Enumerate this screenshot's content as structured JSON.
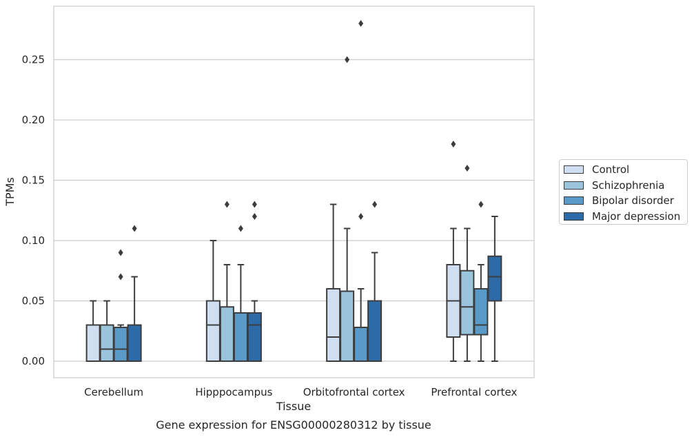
{
  "chart_data": {
    "type": "boxplot",
    "title": "Gene expression for ENSG00000280312 by tissue",
    "xlabel": "Tissue",
    "ylabel": "TPMs",
    "ylim": [
      -0.014,
      0.295
    ],
    "yticks": [
      "0.00",
      "0.05",
      "0.10",
      "0.15",
      "0.20",
      "0.25"
    ],
    "grid": true,
    "legend_position": "outside-right",
    "categories": [
      "Cerebellum",
      "Hipppocampus",
      "Orbitofrontal cortex",
      "Prefrontal cortex"
    ],
    "series": [
      {
        "name": "Control",
        "color": "#cfdef0",
        "boxes": [
          {
            "whislo": 0.0,
            "q1": 0.0,
            "med": 0.0,
            "q3": 0.03,
            "whishi": 0.05,
            "fliers": []
          },
          {
            "whislo": 0.0,
            "q1": 0.0,
            "med": 0.03,
            "q3": 0.05,
            "whishi": 0.1,
            "fliers": []
          },
          {
            "whislo": 0.0,
            "q1": 0.0,
            "med": 0.02,
            "q3": 0.06,
            "whishi": 0.13,
            "fliers": []
          },
          {
            "whislo": 0.0,
            "q1": 0.02,
            "med": 0.05,
            "q3": 0.08,
            "whishi": 0.11,
            "fliers": [
              0.18
            ]
          }
        ]
      },
      {
        "name": "Schizophrenia",
        "color": "#9ac3dc",
        "boxes": [
          {
            "whislo": 0.0,
            "q1": 0.0,
            "med": 0.01,
            "q3": 0.03,
            "whishi": 0.05,
            "fliers": []
          },
          {
            "whislo": 0.0,
            "q1": 0.0,
            "med": 0.0,
            "q3": 0.045,
            "whishi": 0.08,
            "fliers": [
              0.13
            ]
          },
          {
            "whislo": 0.0,
            "q1": 0.0,
            "med": 0.0,
            "q3": 0.058,
            "whishi": 0.11,
            "fliers": [
              0.25
            ]
          },
          {
            "whislo": 0.0,
            "q1": 0.022,
            "med": 0.045,
            "q3": 0.075,
            "whishi": 0.11,
            "fliers": [
              0.16
            ]
          }
        ]
      },
      {
        "name": "Bipolar disorder",
        "color": "#5a9ac8",
        "boxes": [
          {
            "whislo": 0.0,
            "q1": 0.0,
            "med": 0.01,
            "q3": 0.028,
            "whishi": 0.03,
            "fliers": [
              0.07,
              0.09
            ]
          },
          {
            "whislo": 0.0,
            "q1": 0.0,
            "med": 0.0,
            "q3": 0.04,
            "whishi": 0.08,
            "fliers": [
              0.11
            ]
          },
          {
            "whislo": 0.0,
            "q1": 0.0,
            "med": 0.0,
            "q3": 0.028,
            "whishi": 0.06,
            "fliers": [
              0.12,
              0.28
            ]
          },
          {
            "whislo": 0.0,
            "q1": 0.022,
            "med": 0.03,
            "q3": 0.06,
            "whishi": 0.08,
            "fliers": [
              0.13
            ]
          }
        ]
      },
      {
        "name": "Major depression",
        "color": "#2c6aa8",
        "boxes": [
          {
            "whislo": 0.0,
            "q1": 0.0,
            "med": 0.0,
            "q3": 0.03,
            "whishi": 0.07,
            "fliers": [
              0.11
            ]
          },
          {
            "whislo": 0.0,
            "q1": 0.0,
            "med": 0.03,
            "q3": 0.04,
            "whishi": 0.05,
            "fliers": [
              0.12,
              0.13
            ]
          },
          {
            "whislo": 0.0,
            "q1": 0.0,
            "med": 0.0,
            "q3": 0.05,
            "whishi": 0.09,
            "fliers": [
              0.13
            ]
          },
          {
            "whislo": 0.0,
            "q1": 0.05,
            "med": 0.07,
            "q3": 0.087,
            "whishi": 0.12,
            "fliers": []
          }
        ]
      }
    ]
  }
}
